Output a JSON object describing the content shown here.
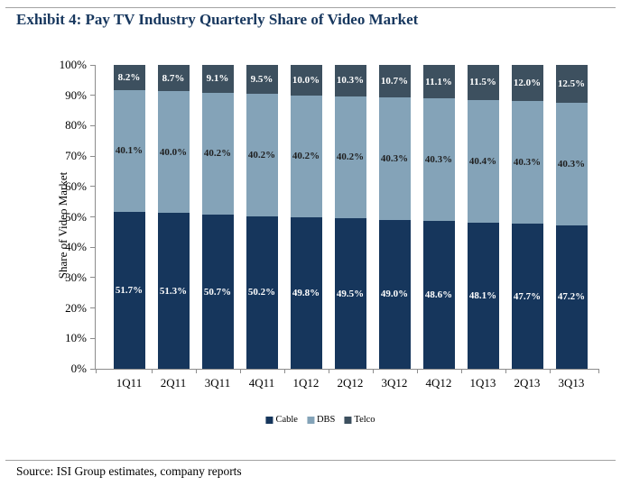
{
  "page": {
    "title": "Exhibit 4: Pay TV Industry Quarterly Share of Video Market",
    "source": "Source: ISI Group estimates, company reports"
  },
  "colors": {
    "title_navy": "#17375e",
    "cable": "#16365c",
    "dbs": "#84a3b8",
    "telco": "#3d505f",
    "axis": "#8c8c8c",
    "rule": "#a3a3a3"
  },
  "chart_data": {
    "type": "bar",
    "stacked": true,
    "title": "",
    "xlabel": "",
    "ylabel": "Share of Video Market",
    "ylim": [
      0,
      100
    ],
    "ytick_step": 10,
    "ytick_suffix": "%",
    "grid": false,
    "legend_position": "bottom",
    "bar_label_suffix": "%",
    "categories": [
      "1Q11",
      "2Q11",
      "3Q11",
      "4Q11",
      "1Q12",
      "2Q12",
      "3Q12",
      "4Q12",
      "1Q13",
      "2Q13",
      "3Q13"
    ],
    "series": [
      {
        "name": "Cable",
        "color_key": "cable",
        "label_color": "#ffffff",
        "values": [
          51.7,
          51.3,
          50.7,
          50.2,
          49.8,
          49.5,
          49.0,
          48.6,
          48.1,
          47.7,
          47.2
        ]
      },
      {
        "name": "DBS",
        "color_key": "dbs",
        "label_color": "#1f1f1f",
        "values": [
          40.1,
          40.0,
          40.2,
          40.2,
          40.2,
          40.2,
          40.3,
          40.3,
          40.4,
          40.3,
          40.3
        ]
      },
      {
        "name": "Telco",
        "color_key": "telco",
        "label_color": "#ffffff",
        "values": [
          8.2,
          8.7,
          9.1,
          9.5,
          10.0,
          10.3,
          10.7,
          11.1,
          11.5,
          12.0,
          12.5
        ]
      }
    ]
  }
}
